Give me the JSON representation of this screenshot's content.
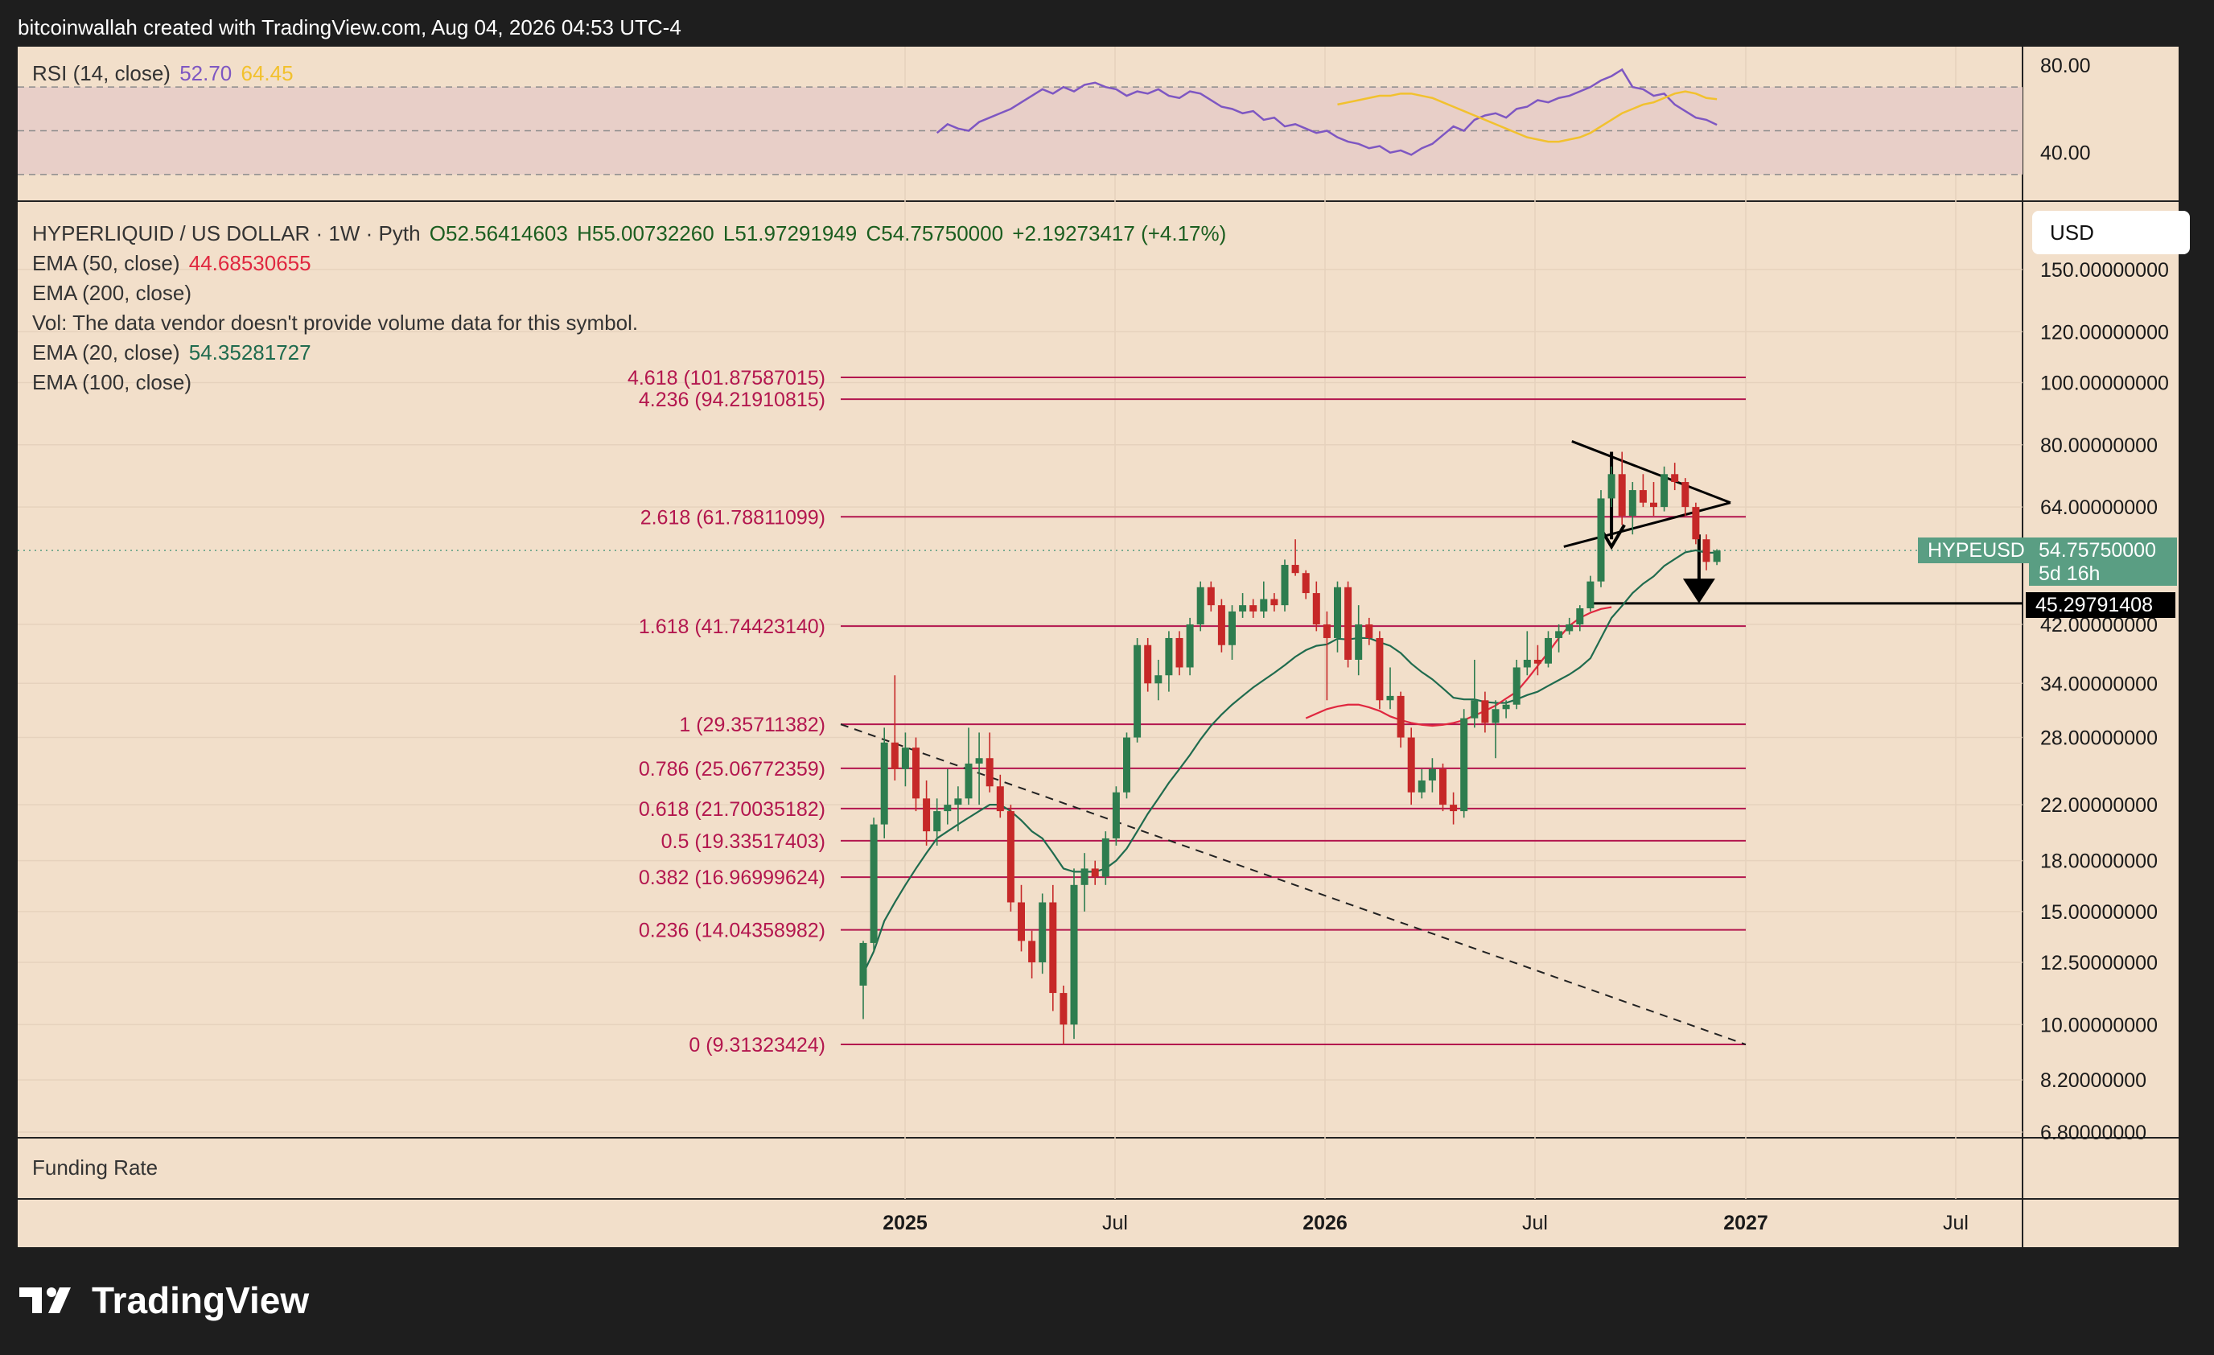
{
  "header": {
    "attribution": "bitcoinwallah created with TradingView.com, Aug 04, 2026 04:53 UTC-4"
  },
  "rsi_panel": {
    "label": "RSI (14, close)",
    "value": "52.70",
    "ma_value": "64.45",
    "levels": [
      "80.00",
      "40.00"
    ]
  },
  "legend": {
    "symbol": "HYPERLIQUID / US DOLLAR · 1W · Pyth",
    "open": "O52.56414603",
    "high": "H55.00732260",
    "low": "L51.97291949",
    "close": "C54.75750000",
    "change": "+2.19273417 (+4.17%)",
    "ema50_label": "EMA (50, close)",
    "ema50_value": "44.68530655",
    "ema200_label": "EMA (200, close)",
    "vol_note": "Vol: The data vendor doesn't provide volume data for this symbol.",
    "ema20_label": "EMA (20, close)",
    "ema20_value": "54.35281727",
    "ema100_label": "EMA (100, close)"
  },
  "currency": "USD",
  "price_axis": {
    "labels": [
      {
        "text": "150.00000000",
        "price": 150
      },
      {
        "text": "120.00000000",
        "price": 120
      },
      {
        "text": "100.00000000",
        "price": 100
      },
      {
        "text": "80.00000000",
        "price": 80
      },
      {
        "text": "64.00000000",
        "price": 64
      },
      {
        "text": "42.00000000",
        "price": 42
      },
      {
        "text": "34.00000000",
        "price": 34
      },
      {
        "text": "28.00000000",
        "price": 28
      },
      {
        "text": "22.00000000",
        "price": 22
      },
      {
        "text": "18.00000000",
        "price": 18
      },
      {
        "text": "15.00000000",
        "price": 15
      },
      {
        "text": "12.50000000",
        "price": 12.5
      },
      {
        "text": "10.00000000",
        "price": 10
      },
      {
        "text": "8.20000000",
        "price": 8.2
      },
      {
        "text": "6.80000000",
        "price": 6.8
      }
    ],
    "current_symbol": "HYPEUSD",
    "current_price": "54.75750000",
    "countdown": "5d 16h",
    "target_price": "45.29791408"
  },
  "time_axis": [
    "2025",
    "Jul",
    "2026",
    "Jul",
    "2027",
    "Jul"
  ],
  "funding_label": "Funding Rate",
  "brand": "TradingView",
  "colors": {
    "background": "#f2dfca",
    "bull": "#2e7d4f",
    "bear": "#c62828",
    "fib": "#b3164e",
    "ema20": "#1f6b4e",
    "ema50": "#e0273f",
    "rsi": "#7e57c2",
    "rsi_ma": "#f2c12e"
  },
  "chart_data": {
    "type": "candlestick",
    "scale": "log",
    "timeframe": "1W",
    "fib_levels": [
      {
        "ratio": "4.618",
        "price": 101.87587015,
        "label": "4.618 (101.87587015)"
      },
      {
        "ratio": "4.236",
        "price": 94.21910815,
        "label": "4.236 (94.21910815)"
      },
      {
        "ratio": "2.618",
        "price": 61.78811099,
        "label": "2.618 (61.78811099)"
      },
      {
        "ratio": "1.618",
        "price": 41.7442314,
        "label": "1.618 (41.74423140)"
      },
      {
        "ratio": "1",
        "price": 29.35711382,
        "label": "1 (29.35711382)"
      },
      {
        "ratio": "0.786",
        "price": 25.06772359,
        "label": "0.786 (25.06772359)"
      },
      {
        "ratio": "0.618",
        "price": 21.70035182,
        "label": "0.618 (21.70035182)"
      },
      {
        "ratio": "0.5",
        "price": 19.33517403,
        "label": "0.5 (19.33517403)"
      },
      {
        "ratio": "0.382",
        "price": 16.96999624,
        "label": "0.382 (16.96999624)"
      },
      {
        "ratio": "0.236",
        "price": 14.04358982,
        "label": "0.236 (14.04358982)"
      },
      {
        "ratio": "0",
        "price": 9.31323424,
        "label": "0 (9.31323424)"
      }
    ],
    "candles": [
      {
        "o": 11.5,
        "h": 13.5,
        "l": 10.2,
        "c": 13.4
      },
      {
        "o": 13.4,
        "h": 21.0,
        "l": 13.0,
        "c": 20.5
      },
      {
        "o": 20.5,
        "h": 29.0,
        "l": 19.5,
        "c": 27.5
      },
      {
        "o": 27.5,
        "h": 35.0,
        "l": 24.0,
        "c": 25.0
      },
      {
        "o": 25.0,
        "h": 28.5,
        "l": 23.5,
        "c": 27.0
      },
      {
        "o": 27.0,
        "h": 28.0,
        "l": 21.5,
        "c": 22.5
      },
      {
        "o": 22.5,
        "h": 24.0,
        "l": 19.0,
        "c": 20.0
      },
      {
        "o": 20.0,
        "h": 22.5,
        "l": 19.0,
        "c": 21.5
      },
      {
        "o": 21.5,
        "h": 25.0,
        "l": 20.5,
        "c": 22.0
      },
      {
        "o": 22.0,
        "h": 23.5,
        "l": 20.0,
        "c": 22.5
      },
      {
        "o": 22.5,
        "h": 29.0,
        "l": 22.0,
        "c": 25.5
      },
      {
        "o": 25.5,
        "h": 28.5,
        "l": 22.0,
        "c": 26.0
      },
      {
        "o": 26.0,
        "h": 28.5,
        "l": 23.0,
        "c": 23.5
      },
      {
        "o": 23.5,
        "h": 24.5,
        "l": 21.0,
        "c": 21.5
      },
      {
        "o": 21.5,
        "h": 22.0,
        "l": 15.0,
        "c": 15.5
      },
      {
        "o": 15.5,
        "h": 16.5,
        "l": 13.0,
        "c": 13.5
      },
      {
        "o": 13.5,
        "h": 14.0,
        "l": 11.8,
        "c": 12.5
      },
      {
        "o": 12.5,
        "h": 16.0,
        "l": 12.0,
        "c": 15.5
      },
      {
        "o": 15.5,
        "h": 16.5,
        "l": 10.5,
        "c": 11.2
      },
      {
        "o": 11.2,
        "h": 11.5,
        "l": 9.31,
        "c": 10.0
      },
      {
        "o": 10.0,
        "h": 17.5,
        "l": 9.5,
        "c": 16.5
      },
      {
        "o": 16.5,
        "h": 18.5,
        "l": 15.0,
        "c": 17.5
      },
      {
        "o": 17.5,
        "h": 18.0,
        "l": 16.5,
        "c": 17.0
      },
      {
        "o": 17.0,
        "h": 20.0,
        "l": 16.5,
        "c": 19.5
      },
      {
        "o": 19.5,
        "h": 23.5,
        "l": 19.0,
        "c": 23.0
      },
      {
        "o": 23.0,
        "h": 28.5,
        "l": 22.5,
        "c": 28.0
      },
      {
        "o": 28.0,
        "h": 40.0,
        "l": 27.5,
        "c": 39.0
      },
      {
        "o": 39.0,
        "h": 40.0,
        "l": 33.0,
        "c": 34.0
      },
      {
        "o": 34.0,
        "h": 37.0,
        "l": 32.0,
        "c": 35.0
      },
      {
        "o": 35.0,
        "h": 41.0,
        "l": 33.0,
        "c": 40.0
      },
      {
        "o": 40.0,
        "h": 41.0,
        "l": 35.0,
        "c": 36.0
      },
      {
        "o": 36.0,
        "h": 43.0,
        "l": 35.0,
        "c": 42.0
      },
      {
        "o": 42.0,
        "h": 49.0,
        "l": 41.0,
        "c": 48.0
      },
      {
        "o": 48.0,
        "h": 49.0,
        "l": 44.0,
        "c": 45.0
      },
      {
        "o": 45.0,
        "h": 46.0,
        "l": 38.0,
        "c": 39.0
      },
      {
        "o": 39.0,
        "h": 45.0,
        "l": 37.0,
        "c": 44.0
      },
      {
        "o": 44.0,
        "h": 47.0,
        "l": 43.0,
        "c": 45.0
      },
      {
        "o": 45.0,
        "h": 46.0,
        "l": 43.0,
        "c": 44.0
      },
      {
        "o": 44.0,
        "h": 49.0,
        "l": 43.0,
        "c": 46.0
      },
      {
        "o": 46.0,
        "h": 47.0,
        "l": 44.0,
        "c": 45.0
      },
      {
        "o": 45.0,
        "h": 53.0,
        "l": 44.0,
        "c": 52.0
      },
      {
        "o": 52.0,
        "h": 57.0,
        "l": 50.0,
        "c": 50.5
      },
      {
        "o": 50.5,
        "h": 51.0,
        "l": 46.0,
        "c": 47.0
      },
      {
        "o": 47.0,
        "h": 49.0,
        "l": 41.0,
        "c": 42.0
      },
      {
        "o": 42.0,
        "h": 44.0,
        "l": 32.0,
        "c": 40.0
      },
      {
        "o": 40.0,
        "h": 49.0,
        "l": 38.0,
        "c": 48.0
      },
      {
        "o": 48.0,
        "h": 49.0,
        "l": 36.0,
        "c": 37.0
      },
      {
        "o": 37.0,
        "h": 45.0,
        "l": 35.0,
        "c": 42.0
      },
      {
        "o": 42.0,
        "h": 43.0,
        "l": 39.0,
        "c": 40.0
      },
      {
        "o": 40.0,
        "h": 41.0,
        "l": 31.0,
        "c": 32.0
      },
      {
        "o": 32.0,
        "h": 36.0,
        "l": 31.0,
        "c": 32.5
      },
      {
        "o": 32.5,
        "h": 33.0,
        "l": 27.0,
        "c": 28.0
      },
      {
        "o": 28.0,
        "h": 29.0,
        "l": 22.0,
        "c": 23.0
      },
      {
        "o": 23.0,
        "h": 25.0,
        "l": 22.5,
        "c": 24.0
      },
      {
        "o": 24.0,
        "h": 26.0,
        "l": 23.0,
        "c": 25.0
      },
      {
        "o": 25.0,
        "h": 25.5,
        "l": 21.5,
        "c": 22.0
      },
      {
        "o": 22.0,
        "h": 23.0,
        "l": 20.5,
        "c": 21.5
      },
      {
        "o": 21.5,
        "h": 31.0,
        "l": 21.0,
        "c": 30.0
      },
      {
        "o": 30.0,
        "h": 37.0,
        "l": 29.0,
        "c": 32.0
      },
      {
        "o": 32.0,
        "h": 33.0,
        "l": 28.5,
        "c": 29.5
      },
      {
        "o": 29.5,
        "h": 32.0,
        "l": 26.0,
        "c": 31.0
      },
      {
        "o": 31.0,
        "h": 32.0,
        "l": 30.0,
        "c": 31.5
      },
      {
        "o": 31.5,
        "h": 37.0,
        "l": 31.0,
        "c": 36.0
      },
      {
        "o": 36.0,
        "h": 41.0,
        "l": 35.0,
        "c": 37.0
      },
      {
        "o": 37.0,
        "h": 39.0,
        "l": 35.0,
        "c": 36.5
      },
      {
        "o": 36.5,
        "h": 41.0,
        "l": 36.0,
        "c": 40.0
      },
      {
        "o": 40.0,
        "h": 42.0,
        "l": 38.0,
        "c": 41.0
      },
      {
        "o": 41.0,
        "h": 43.0,
        "l": 40.5,
        "c": 42.0
      },
      {
        "o": 42.0,
        "h": 45.0,
        "l": 41.0,
        "c": 44.5
      },
      {
        "o": 44.5,
        "h": 50.0,
        "l": 44.0,
        "c": 49.0
      },
      {
        "o": 49.0,
        "h": 68.0,
        "l": 48.0,
        "c": 66.0
      },
      {
        "o": 66.0,
        "h": 74.0,
        "l": 64.0,
        "c": 72.0
      },
      {
        "o": 72.0,
        "h": 78.0,
        "l": 60.0,
        "c": 62.0
      },
      {
        "o": 62.0,
        "h": 70.0,
        "l": 58.0,
        "c": 68.0
      },
      {
        "o": 68.0,
        "h": 72.0,
        "l": 64.0,
        "c": 65.0
      },
      {
        "o": 65.0,
        "h": 70.0,
        "l": 62.0,
        "c": 64.0
      },
      {
        "o": 64.0,
        "h": 74.0,
        "l": 63.0,
        "c": 72.0
      },
      {
        "o": 72.0,
        "h": 75.0,
        "l": 68.0,
        "c": 70.0
      },
      {
        "o": 70.0,
        "h": 71.0,
        "l": 62.0,
        "c": 64.0
      },
      {
        "o": 64.0,
        "h": 65.0,
        "l": 56.0,
        "c": 57.0
      },
      {
        "o": 57.0,
        "h": 58.0,
        "l": 51.0,
        "c": 52.56
      },
      {
        "o": 52.56,
        "h": 55.01,
        "l": 51.97,
        "c": 54.76
      }
    ],
    "ema20": [
      12,
      13,
      14.5,
      15.5,
      16.5,
      17.5,
      18.5,
      19.5,
      20,
      20.5,
      21,
      21.5,
      22,
      22,
      21.5,
      20.8,
      20,
      19.5,
      18.5,
      17.5,
      17.3,
      17.3,
      17.3,
      17.5,
      18,
      18.8,
      20,
      21.3,
      22.5,
      23.8,
      25,
      26.3,
      27.8,
      29.2,
      30.4,
      31.5,
      32.5,
      33.5,
      34.4,
      35.3,
      36.3,
      37.4,
      38.3,
      38.9,
      39.1,
      39.9,
      39.8,
      40.0,
      40.0,
      39.4,
      38.9,
      37.9,
      36.5,
      35.4,
      34.5,
      33.4,
      32.3,
      32.1,
      32.1,
      31.8,
      31.7,
      31.7,
      32.1,
      32.6,
      33.0,
      33.7,
      34.4,
      35.1,
      36.0,
      37.2,
      40.0,
      43.0,
      44.9,
      47.0,
      48.6,
      49.9,
      51.8,
      53.1,
      54.4,
      54.8,
      54.3,
      54.35
    ],
    "ema50_from_index": 42,
    "ema50": [
      30,
      30.5,
      31,
      31.3,
      31.5,
      31.5,
      31.2,
      30.8,
      30.2,
      29.8,
      29.5,
      29.3,
      29.2,
      29.3,
      29.5,
      29.8,
      30.3,
      30.8,
      31.4,
      32.2,
      33.0,
      34.5,
      36.2,
      38.0,
      40.0,
      41.8,
      43.0,
      43.8,
      44.4,
      44.69
    ],
    "rsi": [
      49,
      53,
      51,
      50,
      54,
      56,
      58,
      60,
      63,
      66,
      69,
      67,
      70,
      68,
      71,
      72,
      70,
      69,
      66,
      68,
      67,
      69,
      66,
      65,
      68,
      67,
      64,
      61,
      60,
      58,
      59,
      55,
      56,
      52,
      53,
      51,
      49,
      50,
      47,
      45,
      44,
      42,
      43,
      40,
      41,
      39,
      42,
      44,
      48,
      52,
      50,
      55,
      57,
      58,
      56,
      60,
      61,
      64,
      63,
      65,
      66,
      68,
      70,
      73,
      75,
      78,
      70,
      69,
      66,
      67,
      62,
      59,
      56,
      55,
      52.7
    ],
    "rsi_ma": [
      62,
      63,
      64,
      65,
      66,
      66,
      67,
      67,
      66,
      65,
      63,
      61,
      59,
      57,
      55,
      53,
      51,
      49,
      47,
      46,
      45,
      45,
      46,
      47,
      49,
      52,
      55,
      58,
      60,
      62,
      63,
      65,
      67,
      68,
      67,
      65,
      64.45
    ]
  }
}
